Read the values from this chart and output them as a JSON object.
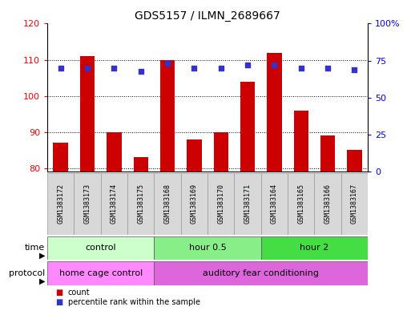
{
  "title": "GDS5157 / ILMN_2689667",
  "samples": [
    "GSM1383172",
    "GSM1383173",
    "GSM1383174",
    "GSM1383175",
    "GSM1383168",
    "GSM1383169",
    "GSM1383170",
    "GSM1383171",
    "GSM1383164",
    "GSM1383165",
    "GSM1383166",
    "GSM1383167"
  ],
  "counts": [
    87,
    111,
    90,
    83,
    110,
    88,
    90,
    104,
    112,
    96,
    89,
    85
  ],
  "percentiles": [
    70,
    70,
    70,
    68,
    73,
    70,
    70,
    72,
    72,
    70,
    70,
    69
  ],
  "ylim_left": [
    79,
    120
  ],
  "ylim_right": [
    0,
    100
  ],
  "yticks_left": [
    80,
    90,
    100,
    110,
    120
  ],
  "yticks_right": [
    0,
    25,
    50,
    75,
    100
  ],
  "ytick_labels_right": [
    "0",
    "25",
    "50",
    "75",
    "100%"
  ],
  "bar_color": "#cc0000",
  "dot_color": "#3333cc",
  "time_groups": [
    {
      "label": "control",
      "start": 0,
      "end": 4,
      "color": "#ccffcc"
    },
    {
      "label": "hour 0.5",
      "start": 4,
      "end": 8,
      "color": "#88ee88"
    },
    {
      "label": "hour 2",
      "start": 8,
      "end": 12,
      "color": "#44dd44"
    }
  ],
  "protocol_groups": [
    {
      "label": "home cage control",
      "start": 0,
      "end": 4,
      "color": "#ff88ff"
    },
    {
      "label": "auditory fear conditioning",
      "start": 4,
      "end": 12,
      "color": "#dd66dd"
    }
  ],
  "legend_count_color": "#cc0000",
  "legend_percentile_color": "#3333cc",
  "grid_color": "#000000"
}
